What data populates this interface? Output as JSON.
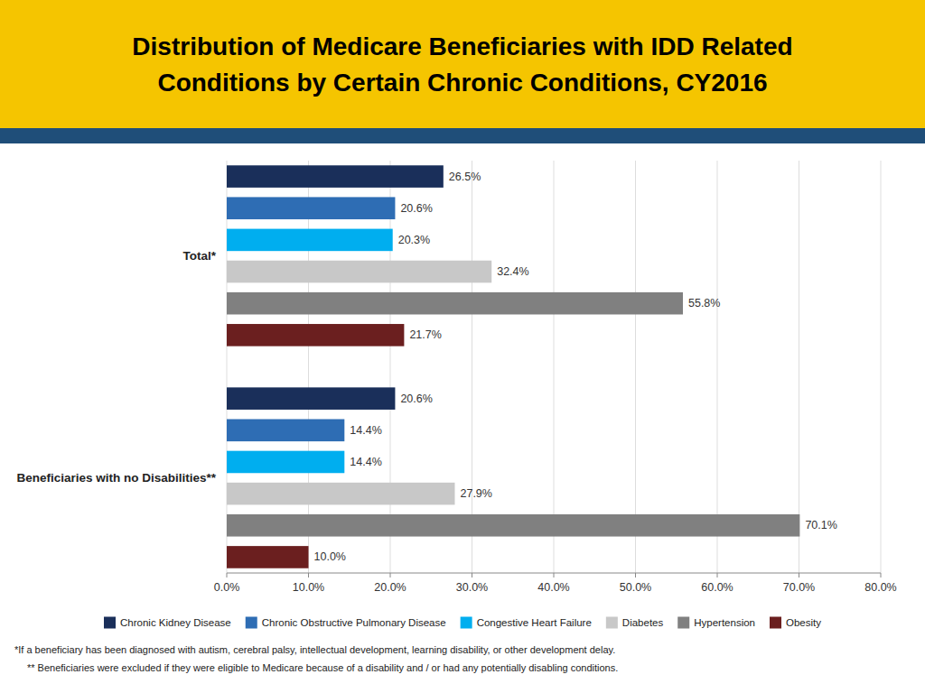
{
  "chart_data": {
    "type": "bar",
    "orientation": "horizontal",
    "title": "Distribution of Medicare Beneficiaries with IDD Related\nConditions by Certain Chronic Conditions, CY2016",
    "categories": [
      "Total*",
      "Beneficiaries with no Disabilities**"
    ],
    "series": [
      {
        "name": "Chronic Kidney Disease",
        "color": "#1a2f5a",
        "values": [
          26.5,
          20.6
        ],
        "value_labels": [
          "26.5%",
          "20.6%"
        ]
      },
      {
        "name": "Chronic Obstructive Pulmonary Disease",
        "color": "#2e6db4",
        "values": [
          20.6,
          14.4
        ],
        "value_labels": [
          "20.6%",
          "14.4%"
        ]
      },
      {
        "name": "Congestive Heart Failure",
        "color": "#00aeef",
        "values": [
          20.3,
          14.4
        ],
        "value_labels": [
          "20.3%",
          "14.4%"
        ]
      },
      {
        "name": "Diabetes",
        "color": "#c8c8c8",
        "values": [
          32.4,
          27.9
        ],
        "value_labels": [
          "32.4%",
          "27.9%"
        ]
      },
      {
        "name": "Hypertension",
        "color": "#808080",
        "values": [
          55.8,
          70.1
        ],
        "value_labels": [
          "55.8%",
          "70.1%"
        ]
      },
      {
        "name": "Obesity",
        "color": "#6b1f1f",
        "values": [
          21.7,
          10.0
        ],
        "value_labels": [
          "21.7%",
          "10.0%"
        ]
      }
    ],
    "xlim": [
      0,
      80
    ],
    "xticks": [
      {
        "value": 0,
        "label": "0.0%"
      },
      {
        "value": 10,
        "label": "10.0%"
      },
      {
        "value": 20,
        "label": "20.0%"
      },
      {
        "value": 30,
        "label": "30.0%"
      },
      {
        "value": 40,
        "label": "40.0%"
      },
      {
        "value": 50,
        "label": "50.0%"
      },
      {
        "value": 60,
        "label": "60.0%"
      },
      {
        "value": 70,
        "label": "70.0%"
      },
      {
        "value": 80,
        "label": "80.0%"
      }
    ],
    "grid": true,
    "data_labels": true,
    "legend": "bottom",
    "annotations": [
      "*If a beneficiary has been diagnosed with autism, cerebral palsy, intellectual development, learning disability, or other development delay.",
      "** Beneficiaries were excluded if they were eligible to Medicare because of a disability and / or had any potentially disabling conditions."
    ]
  }
}
